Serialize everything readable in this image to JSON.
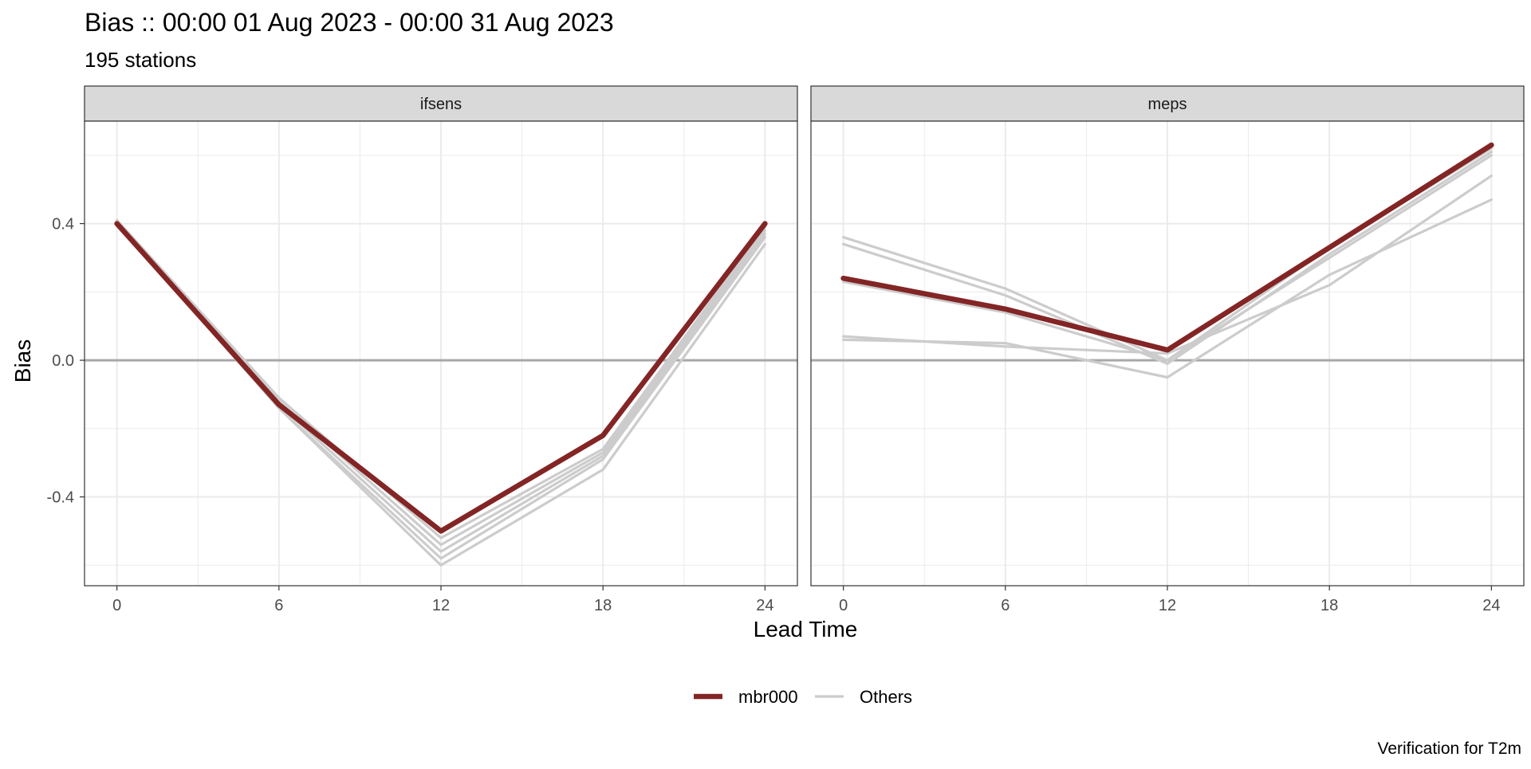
{
  "chart_data": {
    "type": "line",
    "title": "Bias :: 00:00 01 Aug 2023 - 00:00 31 Aug 2023",
    "subtitle": "195 stations",
    "xlabel": "Lead Time",
    "ylabel": "Bias",
    "caption": "Verification for T2m",
    "x": [
      0,
      6,
      12,
      18,
      24
    ],
    "x_ticks": [
      0,
      6,
      12,
      18,
      24
    ],
    "x_tick_labels": [
      "0",
      "6",
      "12",
      "18",
      "24"
    ],
    "xlim": [
      -1.2,
      25.2
    ],
    "y_ticks": [
      -0.4,
      0.0,
      0.4
    ],
    "y_tick_labels": [
      "-0.4",
      "0.0",
      "0.4"
    ],
    "ylim": [
      -0.66,
      0.7
    ],
    "grid": true,
    "reference_line_y": 0,
    "legend_position": "bottom",
    "legend": [
      {
        "label": "mbr000",
        "color": "#832525"
      },
      {
        "label": "Others",
        "color": "#cccccc"
      }
    ],
    "colors": {
      "highlight": "#832525",
      "others": "#cccccc",
      "strip_fill": "#d9d9d9",
      "grid": "#ebebeb",
      "zero_line": "#a8a8a8"
    },
    "panels": [
      {
        "name": "ifsens",
        "highlight": {
          "name": "mbr000",
          "values": [
            0.4,
            -0.13,
            -0.5,
            -0.22,
            0.4
          ]
        },
        "others": [
          {
            "values": [
              0.41,
              -0.11,
              -0.52,
              -0.26,
              0.39
            ]
          },
          {
            "values": [
              0.4,
              -0.12,
              -0.54,
              -0.27,
              0.38
            ]
          },
          {
            "values": [
              0.41,
              -0.13,
              -0.56,
              -0.28,
              0.37
            ]
          },
          {
            "values": [
              0.4,
              -0.14,
              -0.58,
              -0.29,
              0.36
            ]
          },
          {
            "values": [
              0.41,
              -0.14,
              -0.6,
              -0.32,
              0.34
            ]
          }
        ]
      },
      {
        "name": "meps",
        "highlight": {
          "name": "mbr000",
          "values": [
            0.24,
            0.15,
            0.03,
            0.33,
            0.63
          ]
        },
        "others": [
          {
            "values": [
              0.36,
              0.21,
              0.0,
              0.33,
              0.62
            ]
          },
          {
            "values": [
              0.34,
              0.19,
              -0.01,
              0.31,
              0.61
            ]
          },
          {
            "values": [
              0.23,
              0.14,
              0.0,
              0.3,
              0.6
            ]
          },
          {
            "values": [
              0.07,
              0.04,
              0.02,
              0.22,
              0.54
            ]
          },
          {
            "values": [
              0.06,
              0.05,
              -0.05,
              0.25,
              0.47
            ]
          }
        ]
      }
    ]
  }
}
